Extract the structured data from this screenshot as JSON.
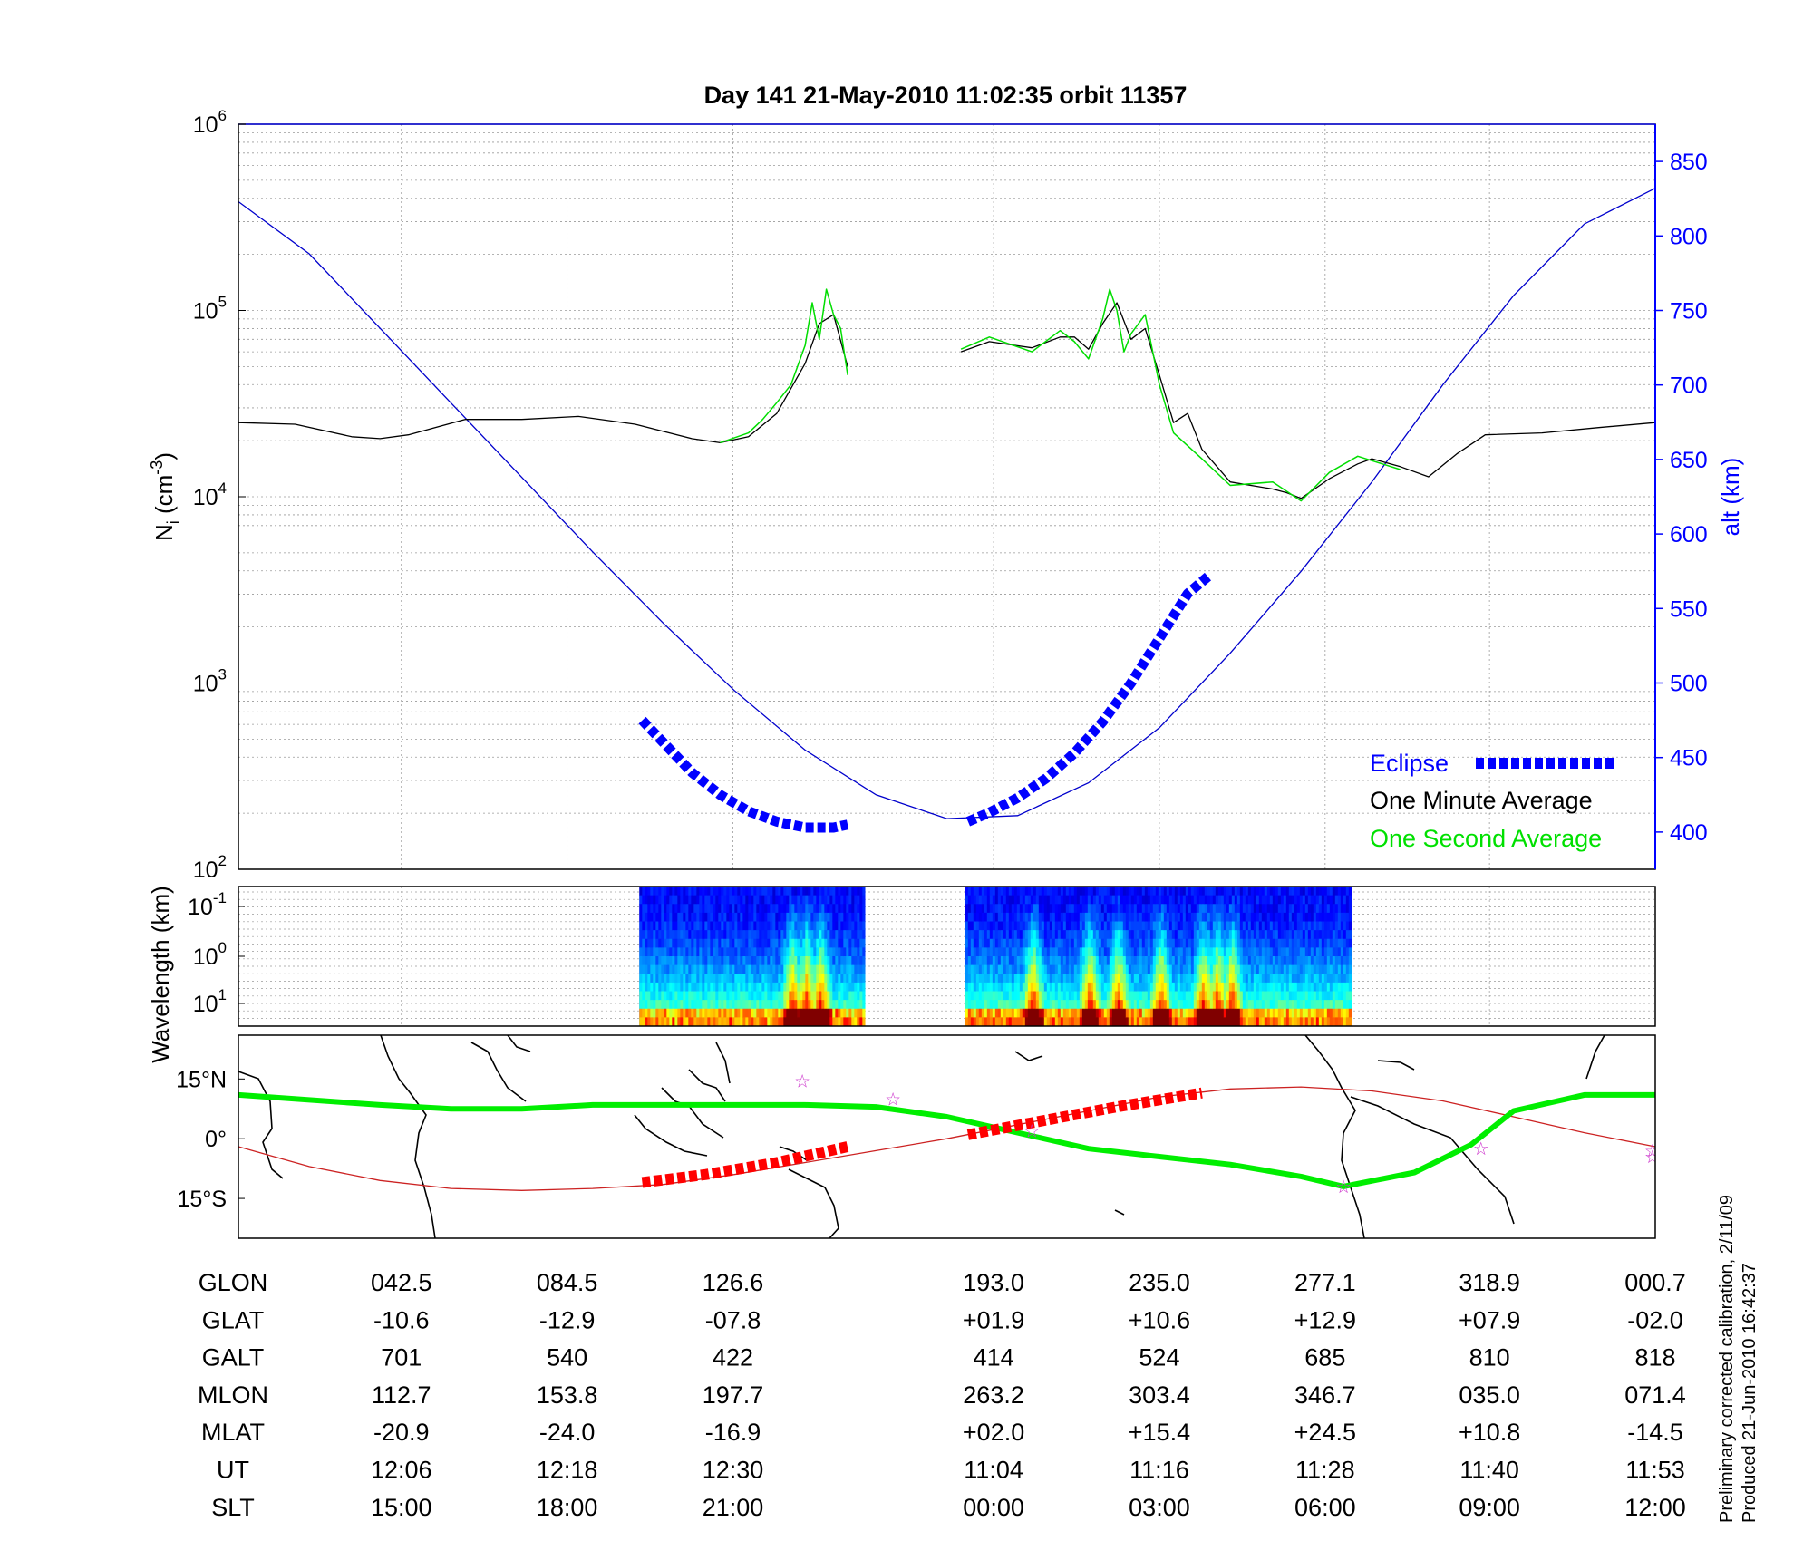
{
  "title": "Day 141  21-May-2010 11:02:35   orbit 11357",
  "chart_data": [
    {
      "type": "line",
      "panel": "density",
      "ylabel_left": "N_i (cm^-3)",
      "ylabel_right": "alt (km)",
      "yscale_left": "log",
      "ylim_left": [
        100,
        1000000
      ],
      "ytick_labels_left": [
        {
          "base": "10",
          "exp": "2",
          "value": 100
        },
        {
          "base": "10",
          "exp": "3",
          "value": 1000
        },
        {
          "base": "10",
          "exp": "4",
          "value": 10000
        },
        {
          "base": "10",
          "exp": "5",
          "value": 100000
        },
        {
          "base": "10",
          "exp": "6",
          "value": 1000000
        }
      ],
      "ylim_right": [
        375,
        875
      ],
      "ytick_labels_right": [
        "400",
        "450",
        "500",
        "550",
        "600",
        "650",
        "700",
        "750",
        "800",
        "850"
      ],
      "grid": true,
      "legend": {
        "placement": "bottom-right",
        "entries": [
          {
            "label": "Eclipse",
            "color": "#0000ff",
            "style": "thick-dashed"
          },
          {
            "label": "One Minute Average",
            "color": "#000000",
            "style": "text"
          },
          {
            "label": "One Second Average",
            "color": "#00e000",
            "style": "text"
          }
        ]
      },
      "x": [
        0,
        0.05,
        0.1,
        0.15,
        0.2,
        0.25,
        0.3,
        0.35,
        0.4,
        0.45,
        0.5,
        0.55,
        0.6,
        0.65,
        0.7,
        0.75,
        0.8,
        0.85,
        0.9,
        0.95,
        1
      ],
      "series": [
        {
          "name": "alt (km)",
          "axis": "right",
          "color": "#0000cc",
          "values": [
            823,
            788,
            738,
            688,
            638,
            588,
            540,
            495,
            455,
            425,
            409,
            411,
            433,
            470,
            520,
            575,
            635,
            700,
            760,
            808,
            832
          ]
        },
        {
          "name": "One Minute Average",
          "axis": "left",
          "color": "#000000",
          "segments": [
            {
              "x": [
                0,
                0.04,
                0.08,
                0.1,
                0.12,
                0.16,
                0.2,
                0.24,
                0.28,
                0.32,
                0.34,
                0.36,
                0.38,
                0.4,
                0.41,
                0.42,
                0.43
              ],
              "values": [
                25000,
                24500,
                21000,
                20500,
                21500,
                26000,
                26000,
                27000,
                24500,
                20500,
                19500,
                21000,
                28000,
                52000,
                85000,
                95000,
                50000
              ]
            },
            {
              "x": [
                0.51,
                0.53,
                0.56,
                0.58,
                0.59,
                0.6,
                0.61,
                0.62,
                0.63,
                0.64,
                0.65,
                0.66,
                0.67,
                0.68,
                0.7,
                0.73,
                0.74,
                0.75,
                0.77,
                0.79,
                0.8,
                0.82,
                0.84,
                0.86,
                0.88,
                0.92,
                0.96,
                1
              ],
              "values": [
                60000,
                68000,
                63000,
                72000,
                72000,
                62000,
                85000,
                110000,
                70000,
                80000,
                45000,
                25000,
                28000,
                18000,
                12000,
                11000,
                10500,
                9800,
                12500,
                15000,
                16000,
                14500,
                12800,
                17000,
                21500,
                22000,
                23500,
                25000
              ]
            }
          ]
        },
        {
          "name": "One Second Average",
          "axis": "left",
          "color": "#00dd00",
          "segments": [
            {
              "x": [
                0.34,
                0.36,
                0.37,
                0.38,
                0.39,
                0.4,
                0.405,
                0.41,
                0.415,
                0.42,
                0.425,
                0.43
              ],
              "values": [
                19500,
                22000,
                26000,
                32000,
                40000,
                65000,
                110000,
                70000,
                130000,
                95000,
                80000,
                45000
              ]
            },
            {
              "x": [
                0.51,
                0.53,
                0.56,
                0.58,
                0.59,
                0.6,
                0.61,
                0.615,
                0.62,
                0.625,
                0.63,
                0.64,
                0.65,
                0.66,
                0.68,
                0.7,
                0.73,
                0.75,
                0.77,
                0.79,
                0.82
              ],
              "values": [
                62000,
                72000,
                60000,
                78000,
                68000,
                55000,
                90000,
                130000,
                100000,
                60000,
                75000,
                95000,
                40000,
                22000,
                16000,
                11500,
                12000,
                9500,
                13500,
                16500,
                14000
              ]
            }
          ]
        },
        {
          "name": "Eclipse",
          "axis": "right",
          "color": "#0000ff",
          "segments": [
            {
              "x": [
                0.285,
                0.3,
                0.32,
                0.34,
                0.36,
                0.38,
                0.4,
                0.42,
                0.43
              ],
              "values": [
                475,
                460,
                440,
                425,
                414,
                407,
                403,
                403,
                405
              ]
            },
            {
              "x": [
                0.515,
                0.53,
                0.55,
                0.57,
                0.59,
                0.61,
                0.63,
                0.65,
                0.67,
                0.685
              ],
              "values": [
                407,
                413,
                423,
                436,
                453,
                474,
                500,
                530,
                560,
                572
              ]
            }
          ]
        }
      ]
    },
    {
      "type": "heatmap",
      "panel": "spectrogram",
      "ylabel": "Wavelength (km)",
      "yscale": "log",
      "ytick_labels": [
        {
          "base": "10",
          "exp": "-1"
        },
        {
          "base": "10",
          "exp": "0"
        },
        {
          "base": "10",
          "exp": "1"
        }
      ],
      "colormap": "jet",
      "active_x_ranges": [
        [
          0.283,
          0.442
        ],
        [
          0.513,
          0.785
        ]
      ],
      "intense_x": [
        0.39,
        0.4,
        0.41,
        0.56,
        0.6,
        0.62,
        0.65,
        0.68,
        0.69,
        0.7
      ],
      "grid": true
    },
    {
      "type": "map",
      "panel": "orbit-track",
      "ytick_labels": [
        "15°N",
        "0°",
        "15°S"
      ],
      "ylim": [
        -25,
        26
      ],
      "geomagnetic_equator": {
        "color": "#00ee00",
        "x": [
          0,
          0.1,
          0.15,
          0.2,
          0.25,
          0.3,
          0.4,
          0.45,
          0.5,
          0.55,
          0.6,
          0.65,
          0.7,
          0.75,
          0.78,
          0.83,
          0.87,
          0.9,
          0.95,
          1
        ],
        "y": [
          11,
          8.5,
          7.5,
          7.5,
          8.5,
          8.5,
          8.5,
          8.0,
          5.5,
          1.5,
          -2.5,
          -4.5,
          -6.5,
          -9.5,
          -12.0,
          -8.5,
          -1.5,
          7.0,
          11.0,
          11.0
        ]
      },
      "orbit_track": {
        "color": "#cc2222",
        "x": [
          0,
          0.05,
          0.1,
          0.15,
          0.2,
          0.25,
          0.3,
          0.35,
          0.4,
          0.45,
          0.5,
          0.55,
          0.6,
          0.65,
          0.7,
          0.75,
          0.8,
          0.85,
          0.9,
          0.95,
          1
        ],
        "y": [
          -2,
          -7,
          -10.5,
          -12.5,
          -13,
          -12.5,
          -11.5,
          -9,
          -6,
          -3,
          0,
          3.5,
          7,
          10.5,
          12.5,
          13,
          12,
          9.5,
          5.5,
          1.5,
          -2
        ]
      },
      "eclipse_track": {
        "color": "#ff0000",
        "segments": [
          {
            "x": [
              0.285,
              0.33,
              0.38,
              0.43
            ],
            "y": [
              -11,
              -9,
              -6,
              -2
            ]
          },
          {
            "x": [
              0.515,
              0.56,
              0.62,
              0.68
            ],
            "y": [
              1,
              4,
              8,
              11.5
            ]
          }
        ]
      },
      "stars": [
        {
          "x": 0.398,
          "y": 14.5
        },
        {
          "x": 0.462,
          "y": 10.0
        },
        {
          "x": 0.56,
          "y": 2.0
        },
        {
          "x": 0.78,
          "y": -12.0
        },
        {
          "x": 0.877,
          "y": -2.5
        },
        {
          "x": 0.998,
          "y": -3.0
        },
        {
          "x": 0.998,
          "y": -4.5
        }
      ]
    }
  ],
  "table": {
    "row_labels": [
      "GLON",
      "GLAT",
      "GALT",
      "MLON",
      "MLAT",
      "UT",
      "SLT"
    ],
    "columns": [
      {
        "x": 0.115,
        "values": [
          "042.5",
          "-10.6",
          "701",
          "112.7",
          "-20.9",
          "12:06",
          "15:00"
        ]
      },
      {
        "x": 0.232,
        "values": [
          "084.5",
          "-12.9",
          "540",
          "153.8",
          "-24.0",
          "12:18",
          "18:00"
        ]
      },
      {
        "x": 0.349,
        "values": [
          "126.6",
          "-07.8",
          "422",
          "197.7",
          "-16.9",
          "12:30",
          "21:00"
        ]
      },
      {
        "x": 0.533,
        "values": [
          "193.0",
          "+01.9",
          "414",
          "263.2",
          "+02.0",
          "11:04",
          "00:00"
        ]
      },
      {
        "x": 0.65,
        "values": [
          "235.0",
          "+10.6",
          "524",
          "303.4",
          "+15.4",
          "11:16",
          "03:00"
        ]
      },
      {
        "x": 0.767,
        "values": [
          "277.1",
          "+12.9",
          "685",
          "346.7",
          "+24.5",
          "11:28",
          "06:00"
        ]
      },
      {
        "x": 0.883,
        "values": [
          "318.9",
          "+07.9",
          "810",
          "035.0",
          "+10.8",
          "11:40",
          "09:00"
        ]
      },
      {
        "x": 1.0,
        "values": [
          "000.7",
          "-02.0",
          "818",
          "071.4",
          "-14.5",
          "11:53",
          "12:00"
        ]
      }
    ]
  },
  "footnote": {
    "line1": "Preliminary corrected calibration, 2/11/09",
    "line2": "Produced 21-Jun-2010 16:42:37"
  }
}
